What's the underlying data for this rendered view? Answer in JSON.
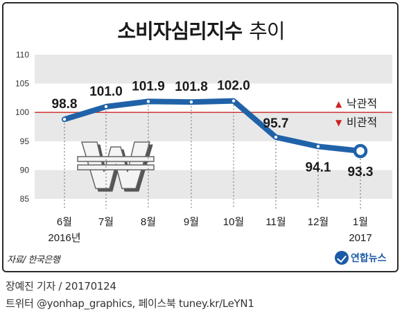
{
  "header": {
    "title_main": "소비자심리지수",
    "title_sub": "추이"
  },
  "chart_data": {
    "type": "line",
    "categories": [
      "6월",
      "7월",
      "8월",
      "9월",
      "10월",
      "11월",
      "12월",
      "1월"
    ],
    "year_labels": {
      "first": "2016년",
      "last": "2017"
    },
    "values": [
      98.8,
      101.0,
      101.9,
      101.8,
      102.0,
      95.7,
      94.1,
      93.3
    ],
    "value_labels": [
      "98.8",
      "101.0",
      "101.9",
      "101.8",
      "102.0",
      "95.7",
      "94.1",
      "93.3"
    ],
    "ylim": [
      85,
      110
    ],
    "yticks": [
      85,
      90,
      95,
      100,
      105,
      110
    ],
    "reference_line": 100,
    "legend": [
      {
        "label": "낙관적",
        "marker": "▲",
        "color": "#cc2222"
      },
      {
        "label": "비관적",
        "marker": "▼",
        "color": "#cc2222"
      }
    ],
    "colors": {
      "line": "#2062a8",
      "reference": "#d24040",
      "band": "#e8e8e8"
    }
  },
  "footer": {
    "source": "자료/ 한국은행",
    "logo_label": "연합뉴스",
    "credit_line1": "장예진 기자 / 20170124",
    "credit_line2": "트위터 @yonhap_graphics, 페이스북 tuney.kr/LeYN1"
  }
}
